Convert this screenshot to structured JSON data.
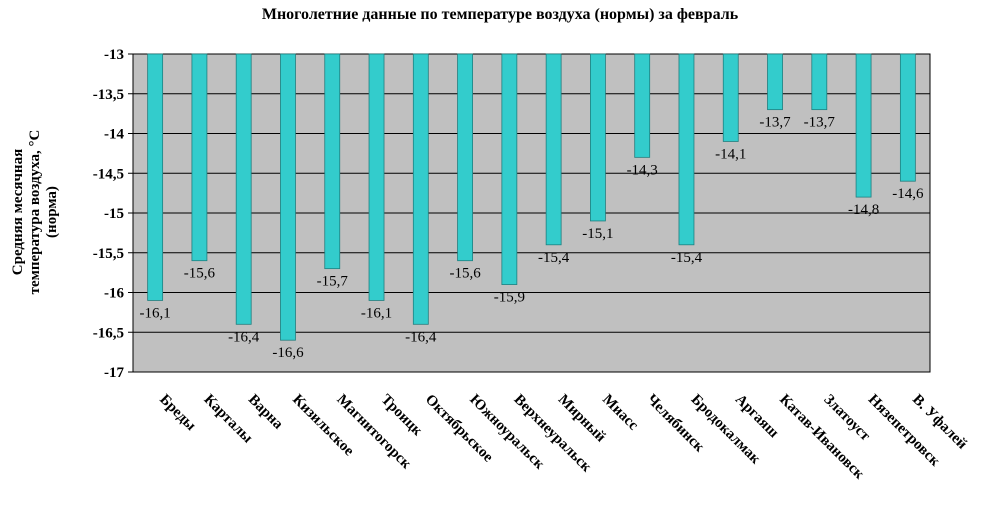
{
  "chart_data": {
    "type": "bar",
    "title": "Многолетние данные по температуре воздуха (нормы) за февраль",
    "ylabel_lines": [
      "Средняя месячная",
      "температура воздуха, °С",
      "(норма)"
    ],
    "xlabel": "",
    "ylim": [
      -17,
      -13
    ],
    "yticks": [
      -13,
      -13.5,
      -14,
      -14.5,
      -15,
      -15.5,
      -16,
      -16.5,
      -17
    ],
    "ytick_labels": [
      "-13",
      "-13,5",
      "-14",
      "-14,5",
      "-15",
      "-15,5",
      "-16",
      "-16,5",
      "-17"
    ],
    "categories": [
      "Бреды",
      "Карталы",
      "Варна",
      "Кизильское",
      "Магнитогорск",
      "Троицк",
      "Октябрьское",
      "Южноуральск",
      "Верхнеуральск",
      "Мирный",
      "Миасс",
      "Челябинск",
      "Бродокалмак",
      "Аргаяш",
      "Катав-Ивановск",
      "Златоуст",
      "Нязепетровск",
      "В. Уфалей"
    ],
    "values": [
      -16.1,
      -15.6,
      -16.4,
      -16.6,
      -15.7,
      -16.1,
      -16.4,
      -15.6,
      -15.9,
      -15.4,
      -15.1,
      -14.3,
      -15.4,
      -14.1,
      -13.7,
      -13.7,
      -14.8,
      -14.6
    ],
    "value_labels": [
      "-16,1",
      "-15,6",
      "-16,4",
      "-16,6",
      "-15,7",
      "-16,1",
      "-16,4",
      "-15,6",
      "-15,9",
      "-15,4",
      "-15,1",
      "-14,3",
      "-15,4",
      "-14,1",
      "-13,7",
      "-13,7",
      "-14,8",
      "-14,6"
    ],
    "grid": true,
    "colors": {
      "bar": "#33CCCC",
      "bar_edge": "#1f7f7f",
      "plot_bg": "#C0C0C0",
      "grid": "#000000"
    }
  }
}
